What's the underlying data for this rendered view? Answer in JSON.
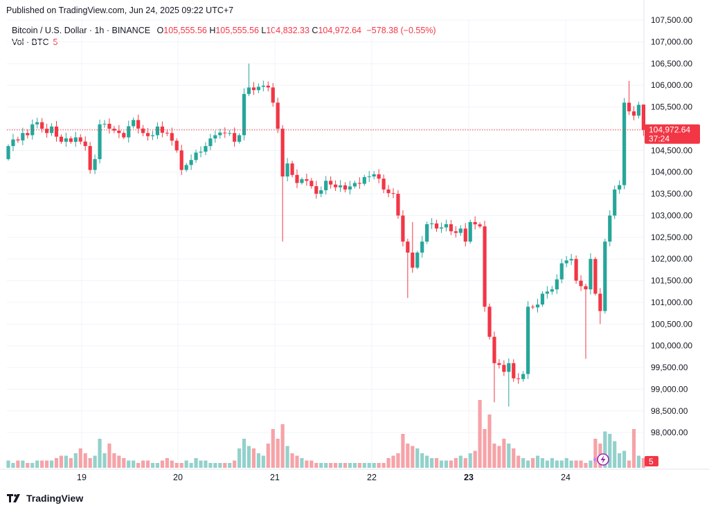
{
  "header": {
    "published": "Published on TradingView.com, Jun 24, 2025 09:22 UTC+7"
  },
  "legend": {
    "symbol": "Bitcoin / U.S. Dollar · 1h · BINANCE",
    "o_label": "O",
    "o_value": "105,555.56",
    "h_label": "H",
    "h_value": "105,555.56",
    "l_label": "L",
    "l_value": "104,832.33",
    "c_label": "C",
    "c_value": "104,972.64",
    "change": "−578.38 (−0.55%)",
    "vol_label": "Vol · BTC",
    "vol_value": "5"
  },
  "price_tag": {
    "price": "104,972.64",
    "countdown": "37:24"
  },
  "volume_tag": "5",
  "colors": {
    "up": "#26a69a",
    "down": "#f23645",
    "up_vol": "#93d1cb",
    "down_vol": "#f5a3a8",
    "grid": "#f0f3fa"
  },
  "footer": {
    "brand": "TradingView"
  },
  "chart_data": {
    "type": "candlestick",
    "symbol": "BTCUSD",
    "interval": "1h",
    "y_ticks": [
      "107,500.00",
      "107,000.00",
      "106,500.00",
      "106,000.00",
      "105,500.00",
      "105,000.00",
      "104,500.00",
      "104,000.00",
      "103,500.00",
      "103,000.00",
      "102,500.00",
      "102,000.00",
      "101,500.00",
      "101,000.00",
      "100,500.00",
      "100,000.00",
      "99,500.00",
      "99,000.00",
      "98,500.00",
      "98,000.00"
    ],
    "x_ticks": [
      "19",
      "20",
      "21",
      "22",
      "23",
      "24"
    ],
    "ylim": [
      97700,
      107550
    ],
    "last_price": 104972.64,
    "anchors": [
      [
        0,
        104600
      ],
      [
        3,
        104900
      ],
      [
        4,
        104850
      ],
      [
        5,
        105100
      ],
      [
        6,
        105150
      ],
      [
        8,
        104900
      ],
      [
        9,
        105050
      ],
      [
        11,
        104700
      ],
      [
        14,
        104800
      ],
      [
        16,
        104600
      ],
      [
        17,
        104050
      ],
      [
        18,
        104300
      ],
      [
        19,
        105100
      ],
      [
        21,
        105000
      ],
      [
        24,
        104800
      ],
      [
        26,
        105200
      ],
      [
        28,
        104900
      ],
      [
        30,
        104850
      ],
      [
        31,
        105050
      ],
      [
        33,
        104900
      ],
      [
        35,
        104500
      ],
      [
        36,
        104050
      ],
      [
        39,
        104450
      ],
      [
        41,
        104600
      ],
      [
        43,
        104850
      ],
      [
        46,
        104900
      ],
      [
        47,
        104700
      ],
      [
        48,
        104850
      ],
      [
        49,
        105800
      ],
      [
        50,
        105950
      ],
      [
        54,
        105950
      ],
      [
        55,
        105600
      ],
      [
        56,
        105000
      ],
      [
        57,
        103900
      ],
      [
        58,
        104200
      ],
      [
        60,
        103750
      ],
      [
        62,
        103800
      ],
      [
        64,
        103500
      ],
      [
        66,
        103800
      ],
      [
        68,
        103650
      ],
      [
        70,
        103600
      ],
      [
        72,
        103750
      ],
      [
        75,
        103900
      ],
      [
        76,
        103950
      ],
      [
        77,
        103850
      ],
      [
        78,
        103600
      ],
      [
        80,
        103500
      ],
      [
        81,
        103000
      ],
      [
        82,
        102400
      ],
      [
        84,
        101800
      ],
      [
        86,
        102400
      ],
      [
        87,
        102800
      ],
      [
        89,
        102700
      ],
      [
        91,
        102800
      ],
      [
        93,
        102600
      ],
      [
        94,
        102700
      ],
      [
        95,
        102400
      ],
      [
        96,
        102850
      ],
      [
        98,
        102750
      ],
      [
        99,
        100900
      ],
      [
        101,
        99600
      ],
      [
        103,
        99400
      ],
      [
        104,
        99600
      ],
      [
        105,
        99250
      ],
      [
        107,
        99350
      ],
      [
        108,
        100900
      ],
      [
        110,
        100950
      ],
      [
        111,
        101200
      ],
      [
        113,
        101300
      ],
      [
        115,
        101900
      ],
      [
        117,
        102000
      ],
      [
        118,
        101500
      ],
      [
        120,
        101300
      ],
      [
        121,
        102000
      ],
      [
        122,
        101200
      ],
      [
        123,
        100800
      ],
      [
        124,
        102400
      ],
      [
        125,
        103000
      ],
      [
        126,
        103600
      ],
      [
        127,
        103700
      ],
      [
        128,
        105600
      ],
      [
        129,
        105400
      ],
      [
        130,
        105300
      ],
      [
        131,
        105550
      ],
      [
        132,
        104972.64
      ]
    ],
    "volume": [
      3,
      2,
      3,
      3,
      2,
      2,
      3,
      3,
      3,
      3,
      4,
      5,
      5,
      4,
      6,
      8,
      6,
      4,
      5,
      12,
      6,
      10,
      6,
      5,
      4,
      3,
      3,
      2,
      3,
      3,
      2,
      2,
      3,
      4,
      3,
      2,
      2,
      3,
      2,
      4,
      3,
      3,
      2,
      2,
      2,
      2,
      2,
      3,
      8,
      12,
      9,
      8,
      6,
      5,
      10,
      16,
      12,
      18,
      9,
      6,
      5,
      4,
      3,
      3,
      2,
      2,
      2,
      2,
      2,
      2,
      2,
      2,
      2,
      2,
      2,
      2,
      2,
      2,
      2,
      4,
      5,
      6,
      14,
      10,
      9,
      8,
      6,
      5,
      4,
      4,
      3,
      3,
      3,
      4,
      5,
      4,
      6,
      7,
      28,
      16,
      22,
      10,
      9,
      12,
      10,
      8,
      5,
      4,
      3,
      4,
      5,
      4,
      3,
      4,
      3,
      3,
      4,
      3,
      3,
      3,
      2,
      3,
      12,
      10,
      15,
      14,
      11,
      6,
      7,
      3,
      16,
      5,
      4,
      5,
      3
    ]
  }
}
